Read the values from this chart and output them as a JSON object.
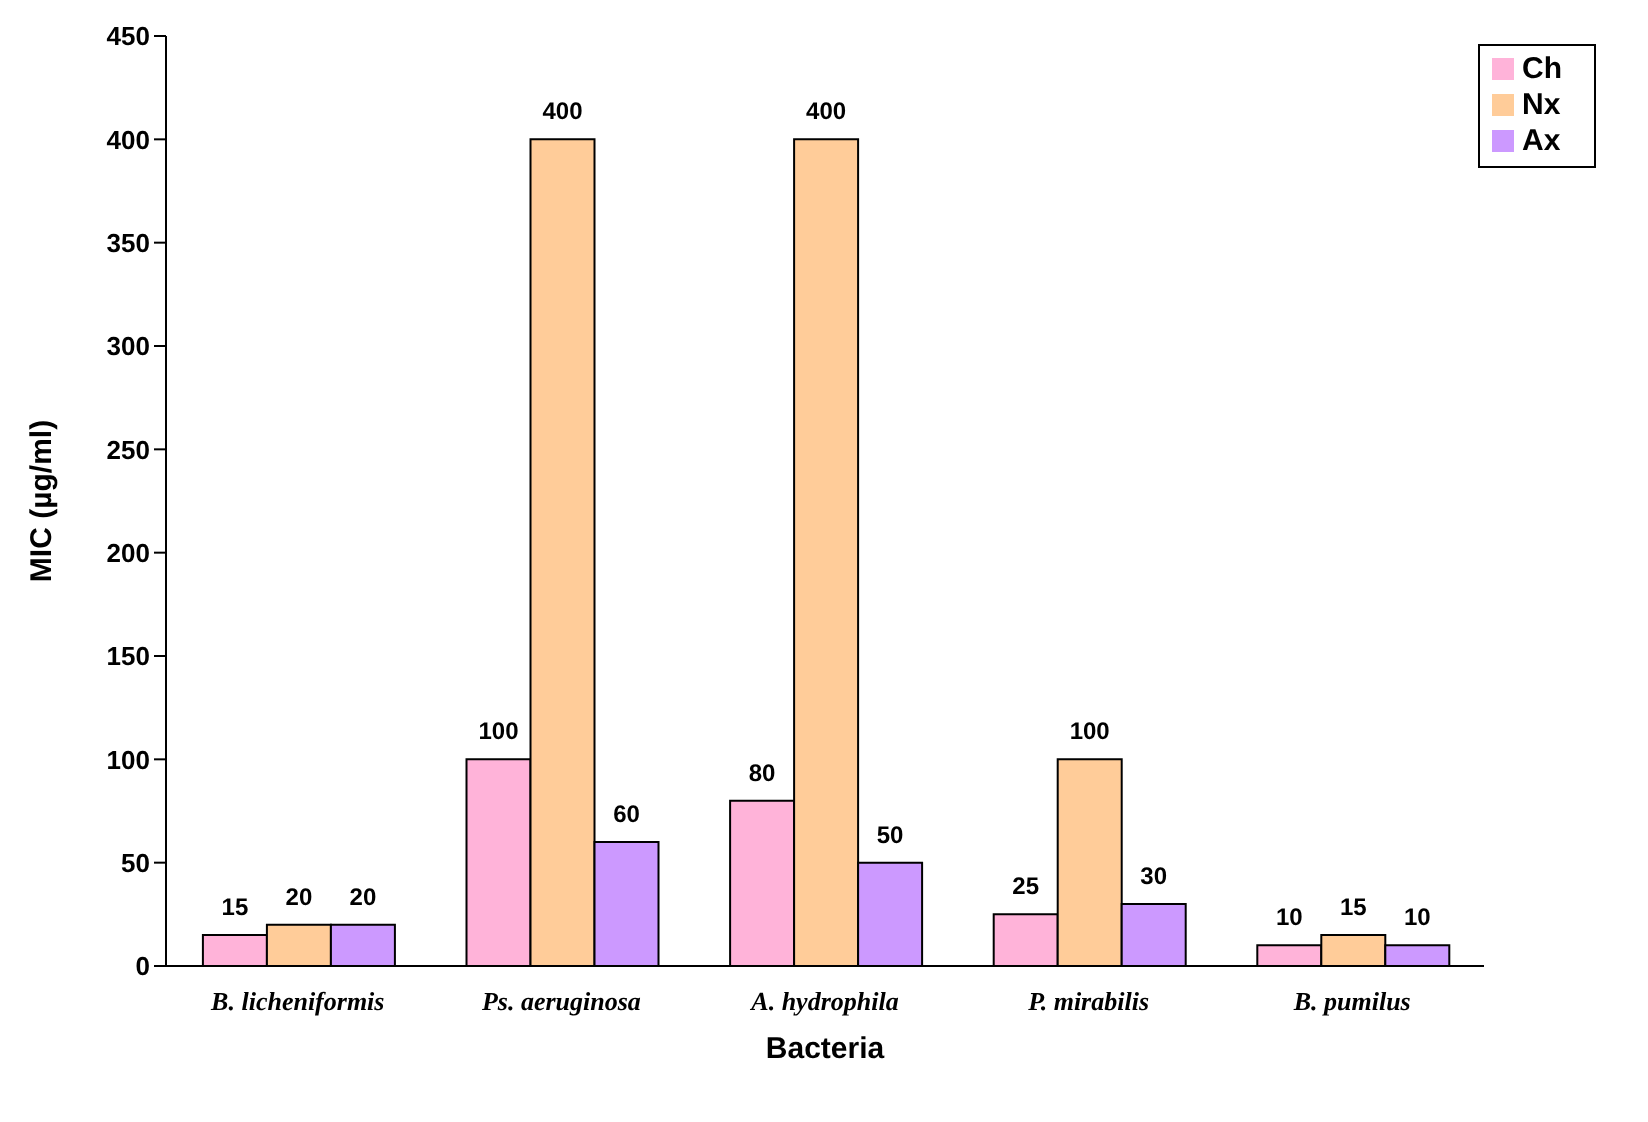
{
  "chart_data": {
    "type": "bar",
    "xlabel": "Bacteria",
    "ylabel": "MIC (µg/ml)",
    "categories": [
      "B. licheniformis",
      "Ps. aeruginosa",
      "A. hydrophila",
      "P. mirabilis",
      "B. pumilus"
    ],
    "series": [
      {
        "name": "Ch",
        "color": "#ffb3d9",
        "values": [
          15,
          100,
          80,
          25,
          10
        ]
      },
      {
        "name": "Nx",
        "color": "#ffcc99",
        "values": [
          20,
          400,
          400,
          100,
          15
        ]
      },
      {
        "name": "Ax",
        "color": "#cc99ff",
        "values": [
          20,
          60,
          50,
          30,
          10
        ]
      }
    ],
    "ylim": [
      0,
      450
    ],
    "yticks": [
      0,
      50,
      100,
      150,
      200,
      250,
      300,
      350,
      400,
      450
    ],
    "data_labels": true,
    "grid": false,
    "legend": "top right"
  }
}
